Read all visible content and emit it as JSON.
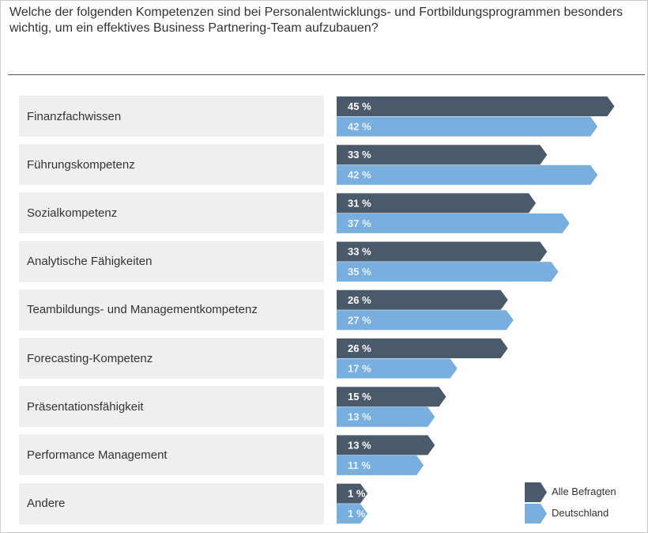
{
  "chart_data": {
    "type": "bar",
    "orientation": "horizontal",
    "title": "Welche der folgenden Kompetenzen sind bei Personalentwicklungs- und Fortbildungsprogrammen besonders wichtig, um ein effektives Business Partnering-Team aufzubauen?",
    "categories": [
      "Finanzfachwissen",
      "Führungskompetenz",
      "Sozialkompetenz",
      "Analytische Fähigkeiten",
      "Teambildungs- und Managementkompetenz",
      "Forecasting-Kompetenz",
      "Präsentationsfähigkeit",
      "Performance Management",
      "Andere"
    ],
    "series": [
      {
        "name": "Alle Befragten",
        "color": "#4a5a6b",
        "values": [
          45,
          33,
          31,
          33,
          26,
          26,
          15,
          13,
          1
        ]
      },
      {
        "name": "Deutschland",
        "color": "#79afdf",
        "values": [
          42,
          42,
          37,
          35,
          27,
          17,
          13,
          11,
          1
        ]
      }
    ],
    "unit": "%",
    "legend_position": "bottom-right",
    "grid": false
  }
}
